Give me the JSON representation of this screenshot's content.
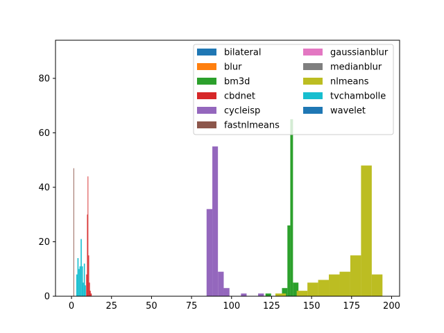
{
  "chart_data": {
    "type": "bar",
    "title": "",
    "xlabel": "",
    "ylabel": "",
    "xlim": [
      -10,
      205
    ],
    "ylim": [
      0,
      94
    ],
    "x_ticks": [
      0,
      25,
      50,
      75,
      100,
      125,
      150,
      175,
      200
    ],
    "y_ticks": [
      0,
      20,
      40,
      60,
      80
    ],
    "grid": false,
    "legend_placement": "top-right",
    "legend_columns": 2,
    "series": [
      {
        "name": "bilateral",
        "color": "#1f77b4",
        "bins": []
      },
      {
        "name": "blur",
        "color": "#ff7f0e",
        "bins": []
      },
      {
        "name": "bm3d",
        "color": "#2ca02c",
        "bins": [
          {
            "x0": 121.2,
            "x1": 124.7,
            "y": 1
          },
          {
            "x0": 131.5,
            "x1": 134.9,
            "y": 3
          },
          {
            "x0": 134.9,
            "x1": 136.7,
            "y": 26
          },
          {
            "x0": 136.7,
            "x1": 138.4,
            "y": 65
          },
          {
            "x0": 138.4,
            "x1": 141.8,
            "y": 5
          }
        ]
      },
      {
        "name": "cbdnet",
        "color": "#d62728",
        "bins": [
          {
            "x0": 9.2,
            "x1": 9.7,
            "y": 8
          },
          {
            "x0": 9.7,
            "x1": 10.1,
            "y": 30
          },
          {
            "x0": 10.1,
            "x1": 10.5,
            "y": 44
          },
          {
            "x0": 10.5,
            "x1": 11.0,
            "y": 15
          },
          {
            "x0": 11.0,
            "x1": 11.5,
            "y": 5
          },
          {
            "x0": 11.5,
            "x1": 12.0,
            "y": 2
          },
          {
            "x0": 12.0,
            "x1": 12.6,
            "y": 1
          }
        ]
      },
      {
        "name": "cycleisp",
        "color": "#9467bd",
        "bins": [
          {
            "x0": 84.4,
            "x1": 88.0,
            "y": 32
          },
          {
            "x0": 88.0,
            "x1": 91.5,
            "y": 55
          },
          {
            "x0": 91.5,
            "x1": 95.1,
            "y": 9
          },
          {
            "x0": 95.1,
            "x1": 98.7,
            "y": 3
          },
          {
            "x0": 105.9,
            "x1": 109.4,
            "y": 1
          },
          {
            "x0": 116.6,
            "x1": 120.2,
            "y": 1
          }
        ]
      },
      {
        "name": "fastnlmeans",
        "color": "#8c564b",
        "bins": [
          {
            "x0": 1.2,
            "x1": 1.6,
            "y": 47
          }
        ]
      },
      {
        "name": "gaussianblur",
        "color": "#e377c2",
        "bins": []
      },
      {
        "name": "medianblur",
        "color": "#7f7f7f",
        "bins": []
      },
      {
        "name": "nlmeans",
        "color": "#bcbd22",
        "bins": [
          {
            "x0": 127.4,
            "x1": 134.0,
            "y": 1
          },
          {
            "x0": 140.7,
            "x1": 147.4,
            "y": 2
          },
          {
            "x0": 147.4,
            "x1": 154.1,
            "y": 5
          },
          {
            "x0": 154.1,
            "x1": 160.8,
            "y": 6
          },
          {
            "x0": 160.8,
            "x1": 167.5,
            "y": 8
          },
          {
            "x0": 167.5,
            "x1": 174.2,
            "y": 9
          },
          {
            "x0": 174.2,
            "x1": 180.9,
            "y": 15
          },
          {
            "x0": 180.9,
            "x1": 187.6,
            "y": 48
          },
          {
            "x0": 187.6,
            "x1": 194.3,
            "y": 8
          }
        ]
      },
      {
        "name": "tvchambolle",
        "color": "#17becf",
        "bins": [
          {
            "x0": 3.0,
            "x1": 3.7,
            "y": 8
          },
          {
            "x0": 3.7,
            "x1": 4.4,
            "y": 14
          },
          {
            "x0": 4.4,
            "x1": 5.0,
            "y": 10
          },
          {
            "x0": 5.0,
            "x1": 5.7,
            "y": 11
          },
          {
            "x0": 5.7,
            "x1": 6.4,
            "y": 21
          },
          {
            "x0": 6.4,
            "x1": 7.1,
            "y": 11
          },
          {
            "x0": 7.1,
            "x1": 7.7,
            "y": 5
          },
          {
            "x0": 7.7,
            "x1": 8.4,
            "y": 12
          },
          {
            "x0": 8.4,
            "x1": 9.0,
            "y": 4
          }
        ]
      },
      {
        "name": "wavelet",
        "color": "#1f77b4",
        "bins": []
      }
    ]
  }
}
